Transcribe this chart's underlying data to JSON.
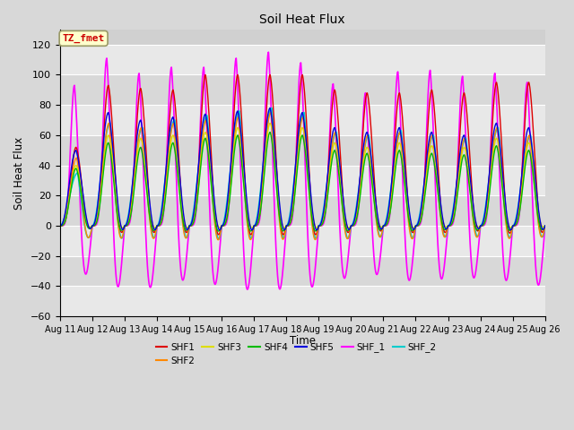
{
  "title": "Soil Heat Flux",
  "ylabel": "Soil Heat Flux",
  "xlabel": "Time",
  "annotation_text": "TZ_fmet",
  "annotation_color": "#cc0000",
  "annotation_bg": "#ffffcc",
  "annotation_border": "#999966",
  "ylim": [
    -60,
    130
  ],
  "yticks": [
    -60,
    -40,
    -20,
    0,
    20,
    40,
    60,
    80,
    100,
    120
  ],
  "xtick_labels": [
    "Aug 11",
    "Aug 12",
    "Aug 13",
    "Aug 14",
    "Aug 15",
    "Aug 16",
    "Aug 17",
    "Aug 18",
    "Aug 19",
    "Aug 20",
    "Aug 21",
    "Aug 22",
    "Aug 23",
    "Aug 24",
    "Aug 25",
    "Aug 26"
  ],
  "series": {
    "SHF1": {
      "color": "#dd0000",
      "lw": 1.0
    },
    "SHF2": {
      "color": "#ff8800",
      "lw": 1.0
    },
    "SHF3": {
      "color": "#dddd00",
      "lw": 1.0
    },
    "SHF4": {
      "color": "#00bb00",
      "lw": 1.0
    },
    "SHF5": {
      "color": "#0000dd",
      "lw": 1.0
    },
    "SHF_1": {
      "color": "#ff00ff",
      "lw": 1.2
    },
    "SHF_2": {
      "color": "#00cccc",
      "lw": 1.2
    }
  },
  "legend_order": [
    "SHF1",
    "SHF2",
    "SHF3",
    "SHF4",
    "SHF5",
    "SHF_1",
    "SHF_2"
  ],
  "bg_color": "#d8d8d8",
  "plot_bg_color": "#d0d0d0",
  "grid_color": "#ffffff",
  "grid_lw": 0.8,
  "band_colors": [
    "#e8e8e8",
    "#d0d0d0"
  ]
}
